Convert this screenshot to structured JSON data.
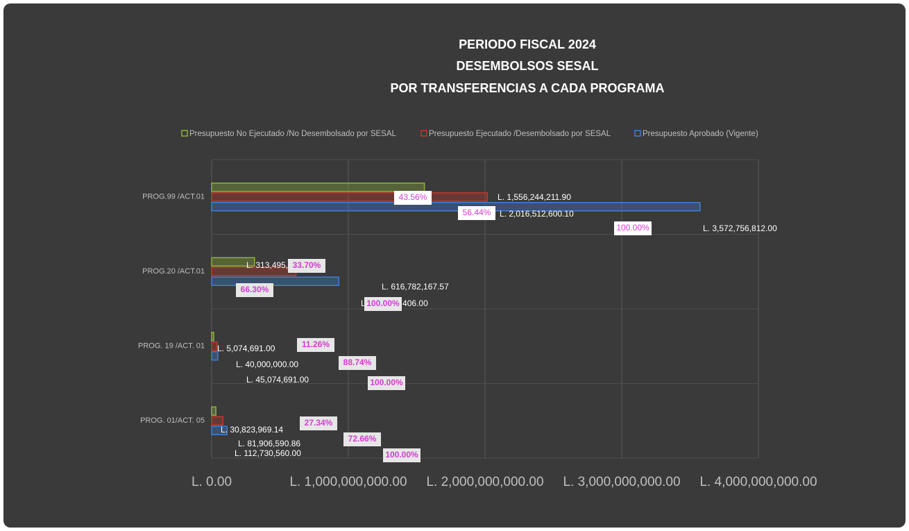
{
  "chart_data": {
    "type": "bar",
    "orientation": "horizontal",
    "title": [
      "PERIODO FISCAL  2024",
      "DESEMBOLSOS SESAL",
      "POR TRANSFERENCIAS A CADA PROGRAMA"
    ],
    "categories": [
      "PROG.99 /ACT.01",
      "PROG.20 /ACT.01",
      "PROG. 19 /ACT. 01",
      "PROG. 01/ACT. 05"
    ],
    "series": [
      {
        "name": "Presupuesto No Ejecutado /No Desembolsado por SESAL",
        "color": "#8db33a",
        "values": [
          1556244211.9,
          313495238.43,
          5074691.0,
          30823969.14
        ],
        "value_labels": [
          "L. 1,556,244,211.90",
          "L. 313,495,238.43",
          "L. 5,074,691.00",
          "L. 30,823,969.14"
        ],
        "percent_labels": [
          "43.56%",
          "33.70%",
          "11.26%",
          "27.34%"
        ]
      },
      {
        "name": "Presupuesto Ejecutado /Desembolsado por SESAL",
        "color": "#c0392b",
        "values": [
          2016512600.1,
          616782167.57,
          40000000.0,
          81906590.86
        ],
        "value_labels": [
          "L. 2,016,512,600.10",
          "L. 616,782,167.57",
          "L. 40,000,000.00",
          "L. 81,906,590.86"
        ],
        "percent_labels": [
          "56.44%",
          "66.30%",
          "88.74%",
          "72.66%"
        ]
      },
      {
        "name": "Presupuesto Aprobado (Vigente)",
        "color": "#3d7fd6",
        "values": [
          3572756812.0,
          930277406.0,
          45074691.0,
          112730560.0
        ],
        "value_labels": [
          "L. 3,572,756,812.00",
          "L. 930,277,406.00",
          "L. 45,074,691.00",
          "L. 112,730,560.00"
        ],
        "percent_labels": [
          "100.00%",
          "100.00%",
          "100.00%",
          "100.00%"
        ]
      }
    ],
    "xlim": [
      0,
      4000000000
    ],
    "xticks": [
      {
        "value": 0,
        "label": "L. 0.00"
      },
      {
        "value": 1000000000,
        "label": "L. 1,000,000,000.00"
      },
      {
        "value": 2000000000,
        "label": "L. 2,000,000,000.00"
      },
      {
        "value": 3000000000,
        "label": "L. 3,000,000,000.00"
      },
      {
        "value": 4000000000,
        "label": "L. 4,000,000,000.00"
      }
    ],
    "grid": true,
    "legend": "top"
  }
}
